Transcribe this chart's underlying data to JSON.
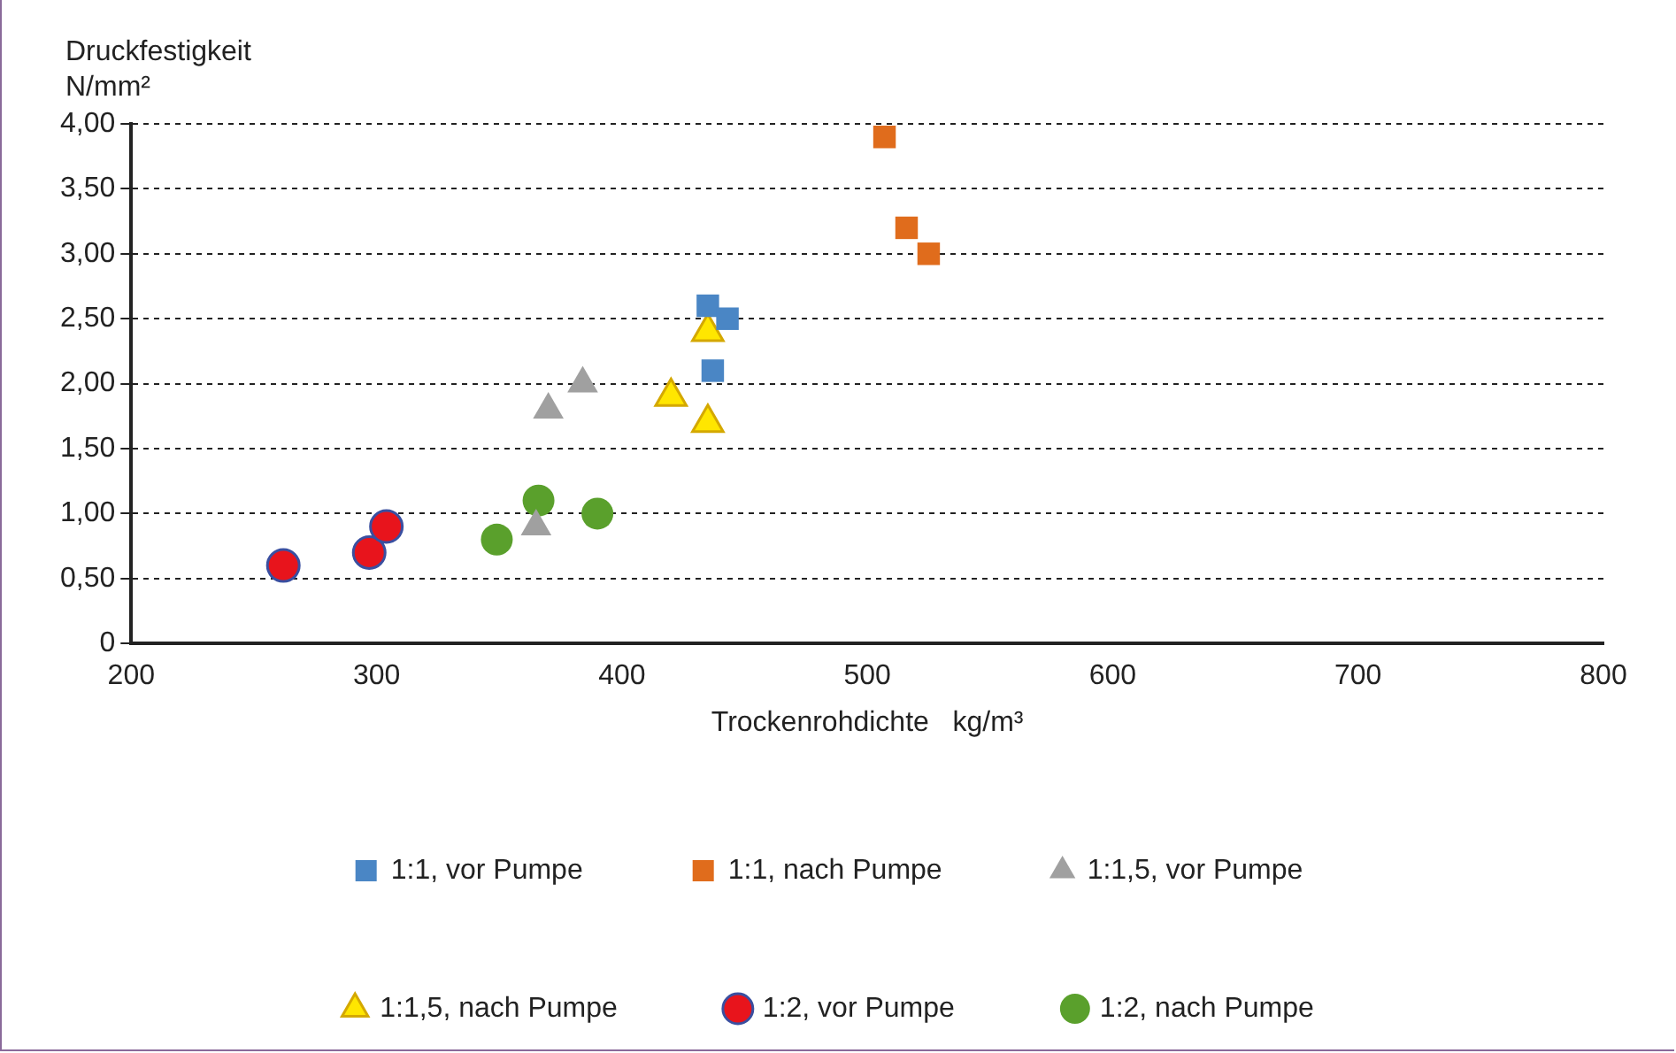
{
  "chart_data": {
    "type": "scatter",
    "xlabel": "Trockenrohdichte   kg/m³",
    "ylabel": "Druckfestigkeit N/mm²",
    "xlim": [
      200,
      800
    ],
    "xticks": [
      200,
      300,
      400,
      500,
      600,
      700,
      800
    ],
    "ylim": [
      0,
      4
    ],
    "yticks": [
      0,
      {
        "value": 0.5,
        "label": "0,50"
      },
      {
        "value": 1,
        "label": "1,00"
      },
      {
        "value": 1.5,
        "label": "1,50"
      },
      {
        "value": 2,
        "label": "2,00"
      },
      {
        "value": 2.5,
        "label": "2,50"
      },
      {
        "value": 3,
        "label": "3,00"
      },
      {
        "value": 3.5,
        "label": "3,50"
      },
      {
        "value": 4,
        "label": "4,00"
      }
    ],
    "grid": "y",
    "legend": "bottom",
    "series": [
      {
        "name": "1:1, vor Pumpe",
        "color": "#4a86c5",
        "marker": "square",
        "x": [
          435,
          443,
          437
        ],
        "values": [
          2.6,
          2.5,
          2.1
        ]
      },
      {
        "name": "1:1, nach Pumpe",
        "color": "#e06c1c",
        "marker": "square",
        "x": [
          507,
          516,
          525
        ],
        "values": [
          3.9,
          3.2,
          3.0
        ]
      },
      {
        "name": "1:1,5, vor Pumpe",
        "color": "#a0a0a0",
        "marker": "triangle",
        "x": [
          384,
          370,
          365
        ],
        "values": [
          2.0,
          1.8,
          0.9
        ]
      },
      {
        "name": "1:1,5, nach Pumpe",
        "color": "#ffe600",
        "marker": "triangle",
        "x": [
          435,
          420,
          435
        ],
        "values": [
          2.4,
          1.9,
          1.7
        ]
      },
      {
        "name": "1:2, vor Pumpe",
        "color": "#e8141c",
        "marker": "circle",
        "x": [
          262,
          297,
          304
        ],
        "values": [
          0.6,
          0.7,
          0.9
        ]
      },
      {
        "name": "1:2, nach Pumpe",
        "color": "#5aa02c",
        "marker": "circle",
        "x": [
          366,
          390,
          349
        ],
        "values": [
          1.1,
          1.0,
          0.8
        ]
      }
    ]
  }
}
